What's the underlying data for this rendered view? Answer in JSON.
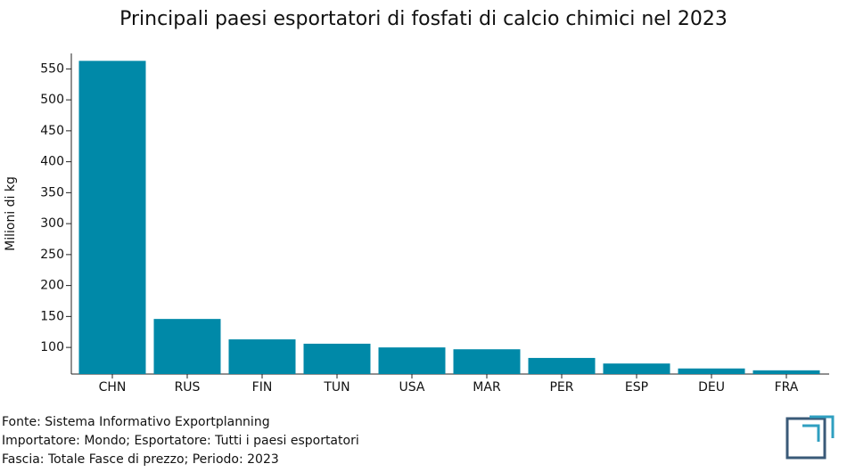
{
  "chart_data": {
    "type": "bar",
    "title": "Principali paesi esportatori di fosfati di calcio chimici nel 2023",
    "y_label": "Milioni di kg",
    "categories": [
      "CHN",
      "RUS",
      "FIN",
      "TUN",
      "USA",
      "MAR",
      "PER",
      "ESP",
      "DEU",
      "FRA"
    ],
    "values": [
      563,
      146,
      113,
      106,
      100,
      97,
      83,
      74,
      66,
      63
    ],
    "color": "#0089a8",
    "ylim": [
      57,
      575
    ],
    "yticks": [
      100,
      150,
      200,
      250,
      300,
      350,
      400,
      450,
      500,
      550
    ]
  },
  "footer": [
    "Fonte: Sistema Informativo Exportplanning",
    "Importatore: Mondo; Esportatore: Tutti i paesi esportatori",
    "Fascia: Totale Fasce di prezzo; Periodo: 2023"
  ]
}
